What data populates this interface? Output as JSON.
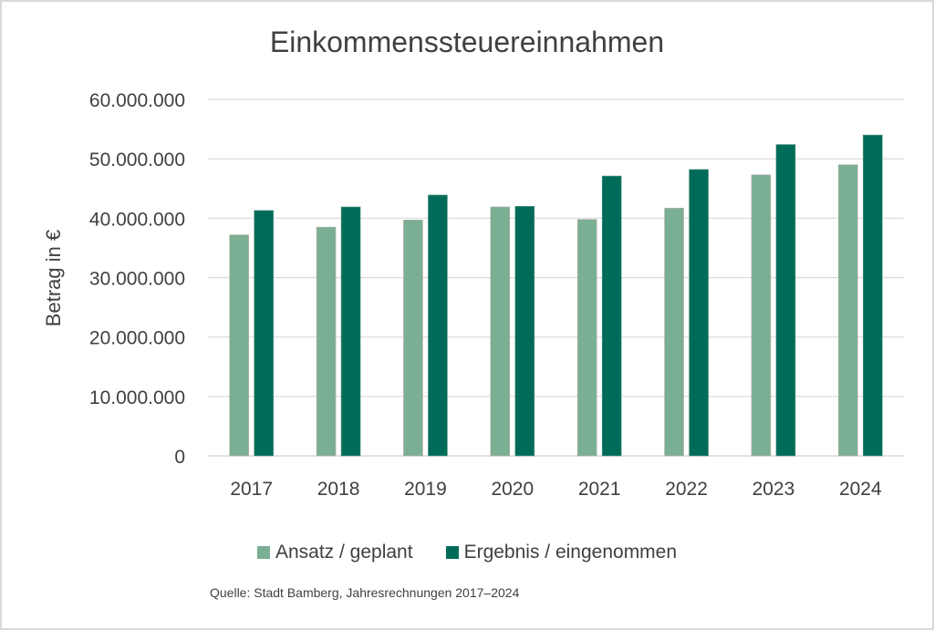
{
  "chart_data": {
    "type": "bar",
    "title": "Einkommenssteuereinnahmen",
    "xlabel": "",
    "ylabel": "Betrag in €",
    "ylim": [
      0,
      60000000
    ],
    "yticks": [
      0,
      10000000,
      20000000,
      30000000,
      40000000,
      50000000,
      60000000
    ],
    "ytick_labels": [
      "0",
      "10.000.000",
      "20.000.000",
      "30.000.000",
      "40.000.000",
      "50.000.000",
      "60.000.000"
    ],
    "grid": true,
    "legend_position": "bottom",
    "categories": [
      "2017",
      "2018",
      "2019",
      "2020",
      "2021",
      "2022",
      "2023",
      "2024"
    ],
    "series": [
      {
        "name": "Ansatz / geplant",
        "color": "#7aaf93",
        "values": [
          37200000,
          38500000,
          39700000,
          41900000,
          39800000,
          41700000,
          47300000,
          49000000
        ]
      },
      {
        "name": "Ergebnis / eingenommen",
        "color": "#006b58",
        "values": [
          41300000,
          41900000,
          43900000,
          42000000,
          47100000,
          48200000,
          52400000,
          54000000
        ]
      }
    ],
    "source_note": "Quelle: Stadt Bamberg, Jahresrechnungen 2017–2024"
  }
}
